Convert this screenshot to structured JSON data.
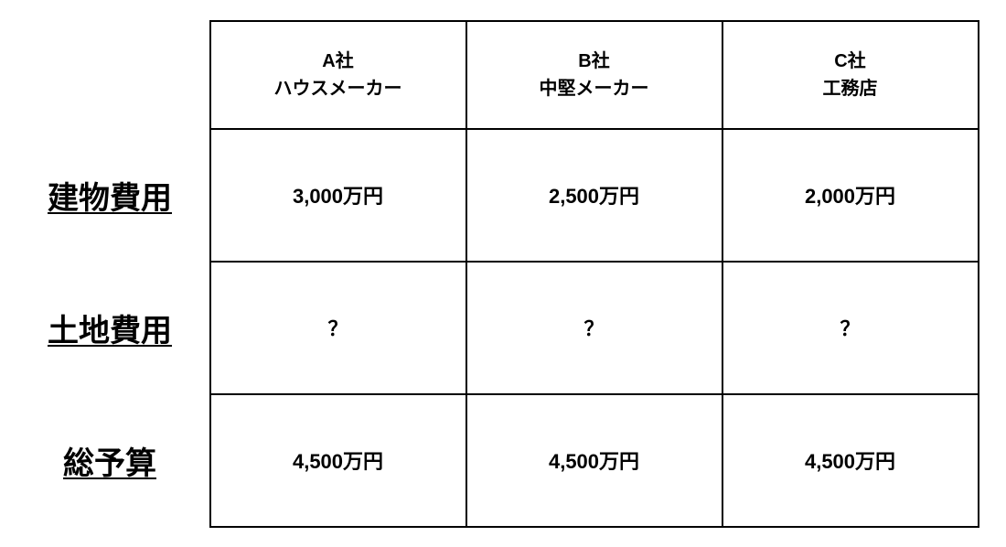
{
  "table": {
    "columns": [
      {
        "top": "A社",
        "bottom": "ハウスメーカー"
      },
      {
        "top": "B社",
        "bottom": "中堅メーカー"
      },
      {
        "top": "C社",
        "bottom": "工務店"
      }
    ],
    "rows": [
      {
        "label": "建物費用",
        "cells": [
          "3,000万円",
          "2,500万円",
          "2,000万円"
        ]
      },
      {
        "label": "土地費用",
        "cells": [
          "？",
          "？",
          "？"
        ]
      },
      {
        "label": "総予算",
        "cells": [
          "4,500万円",
          "4,500万円",
          "4,500万円"
        ]
      }
    ],
    "border_color": "#000000",
    "text_color": "#000000",
    "background_color": "#ffffff",
    "row_label_fontsize": 34,
    "header_fontsize": 20,
    "cell_fontsize": 22,
    "col_label_width": 200,
    "col_data_width": 280,
    "row_head_height": 118,
    "row_body_height": 145
  }
}
